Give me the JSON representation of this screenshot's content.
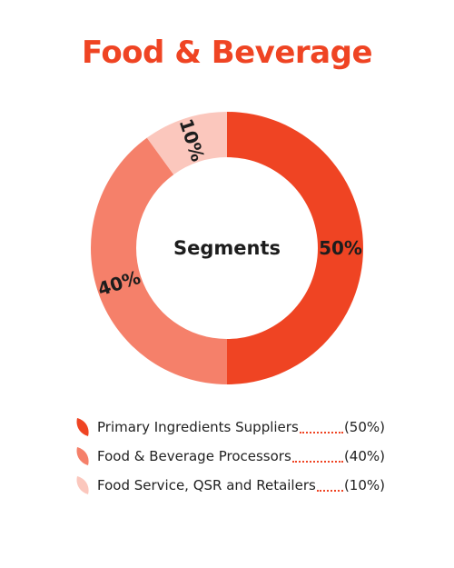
{
  "title": "Food & Beverage",
  "chart_data": {
    "type": "pie",
    "center_label": "Segments",
    "categories": [
      "Primary Ingredients Suppliers",
      "Food & Beverage Processors",
      "Food Service, QSR and Retailers"
    ],
    "values": [
      50,
      40,
      10
    ],
    "value_labels": [
      "50%",
      "40%",
      "10%"
    ],
    "legend_values": [
      "(50%)",
      "(40%)",
      "(10%)"
    ],
    "colors": [
      "#ef4423",
      "#f5806a",
      "#fbc7bd"
    ]
  }
}
